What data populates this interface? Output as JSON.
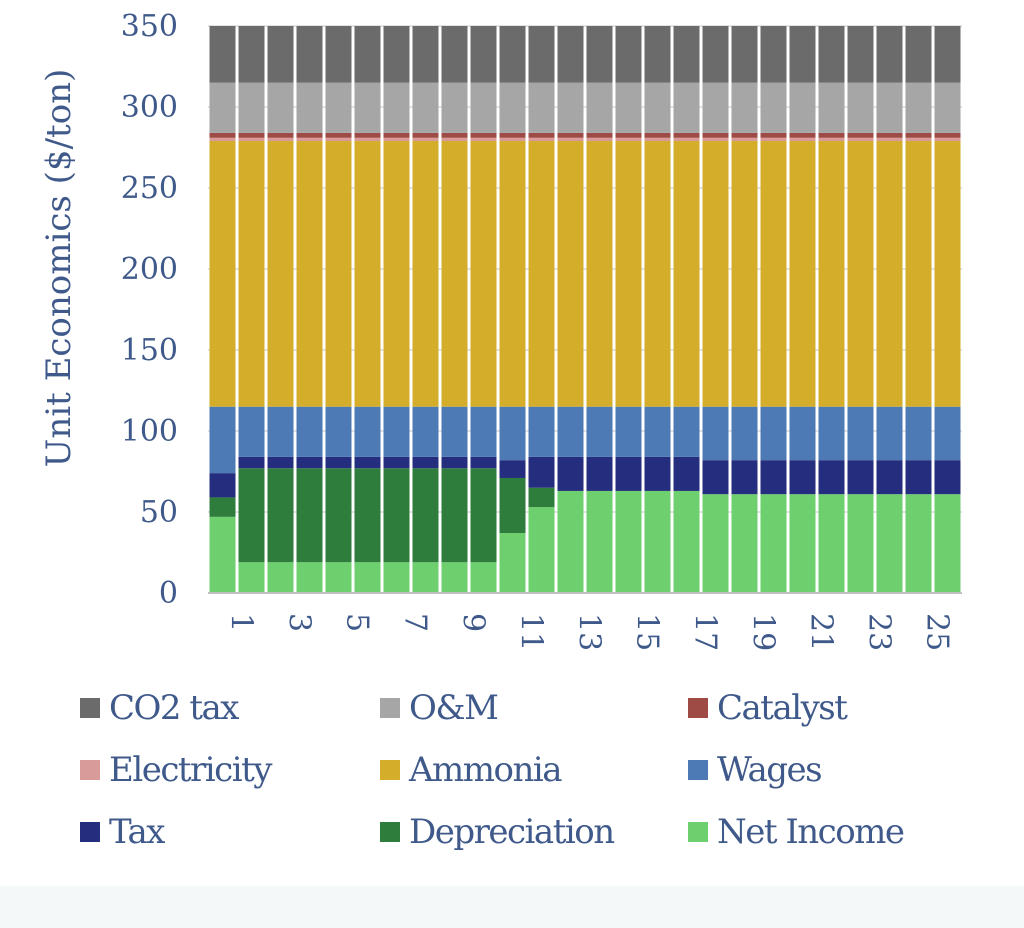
{
  "chart_data": {
    "type": "bar",
    "stacked": true,
    "title": "",
    "xlabel": "",
    "ylabel": "Unit Economics ($/ton)",
    "ylim": [
      0,
      350
    ],
    "yticks": [
      0,
      50,
      100,
      150,
      200,
      250,
      300,
      350
    ],
    "grid": true,
    "legend_position": "bottom",
    "categories": [
      "1",
      "2",
      "3",
      "4",
      "5",
      "6",
      "7",
      "8",
      "9",
      "10",
      "11",
      "12",
      "13",
      "14",
      "15",
      "16",
      "17",
      "18",
      "19",
      "20",
      "21",
      "22",
      "23",
      "24",
      "25",
      "26"
    ],
    "x_tick_labels": [
      "1",
      "3",
      "5",
      "7",
      "9",
      "11",
      "13",
      "15",
      "17",
      "19",
      "21",
      "23",
      "25"
    ],
    "series": [
      {
        "name": "Net Income",
        "color": "#6dcf6d",
        "values": [
          47,
          19,
          19,
          19,
          19,
          19,
          19,
          19,
          19,
          19,
          37,
          53,
          63,
          63,
          63,
          63,
          63,
          61,
          61,
          61,
          61,
          61,
          61,
          61,
          61,
          61
        ]
      },
      {
        "name": "Depreciation",
        "color": "#2e7d3c",
        "values": [
          12,
          58,
          58,
          58,
          58,
          58,
          58,
          58,
          58,
          58,
          34,
          12,
          0,
          0,
          0,
          0,
          0,
          0,
          0,
          0,
          0,
          0,
          0,
          0,
          0,
          0
        ]
      },
      {
        "name": "Tax",
        "color": "#252e7e",
        "values": [
          15,
          7,
          7,
          7,
          7,
          7,
          7,
          7,
          7,
          7,
          11,
          19,
          21,
          21,
          21,
          21,
          21,
          21,
          21,
          21,
          21,
          21,
          21,
          21,
          21,
          21
        ]
      },
      {
        "name": "Wages",
        "color": "#4d7ab5",
        "values": [
          41,
          31,
          31,
          31,
          31,
          31,
          31,
          31,
          31,
          31,
          33,
          31,
          31,
          31,
          31,
          31,
          31,
          33,
          33,
          33,
          33,
          33,
          33,
          33,
          33,
          33
        ]
      },
      {
        "name": "Ammonia",
        "color": "#d4ae2b",
        "values": [
          164,
          164,
          164,
          164,
          164,
          164,
          164,
          164,
          164,
          164,
          164,
          164,
          164,
          164,
          164,
          164,
          164,
          164,
          164,
          164,
          164,
          164,
          164,
          164,
          164,
          164
        ]
      },
      {
        "name": "Electricity",
        "color": "#d99a9a",
        "values": [
          2,
          2,
          2,
          2,
          2,
          2,
          2,
          2,
          2,
          2,
          2,
          2,
          2,
          2,
          2,
          2,
          2,
          2,
          2,
          2,
          2,
          2,
          2,
          2,
          2,
          2
        ]
      },
      {
        "name": "Catalyst",
        "color": "#9e4a45",
        "values": [
          3,
          3,
          3,
          3,
          3,
          3,
          3,
          3,
          3,
          3,
          3,
          3,
          3,
          3,
          3,
          3,
          3,
          3,
          3,
          3,
          3,
          3,
          3,
          3,
          3,
          3
        ]
      },
      {
        "name": "O&M",
        "color": "#a6a6a6",
        "values": [
          31,
          31,
          31,
          31,
          31,
          31,
          31,
          31,
          31,
          31,
          31,
          31,
          31,
          31,
          31,
          31,
          31,
          31,
          31,
          31,
          31,
          31,
          31,
          31,
          31,
          31
        ]
      },
      {
        "name": "CO2 tax",
        "color": "#6b6b6b",
        "values": [
          35,
          35,
          35,
          35,
          35,
          35,
          35,
          35,
          35,
          35,
          35,
          35,
          35,
          35,
          35,
          35,
          35,
          35,
          35,
          35,
          35,
          35,
          35,
          35,
          35,
          35
        ]
      }
    ]
  },
  "legend": {
    "items": [
      {
        "label": "CO2 tax",
        "color": "#6b6b6b"
      },
      {
        "label": "O&M",
        "color": "#a6a6a6"
      },
      {
        "label": "Catalyst",
        "color": "#9e4a45"
      },
      {
        "label": "Electricity",
        "color": "#d99a9a"
      },
      {
        "label": "Ammonia",
        "color": "#d4ae2b"
      },
      {
        "label": "Wages",
        "color": "#4d7ab5"
      },
      {
        "label": "Tax",
        "color": "#252e7e"
      },
      {
        "label": "Depreciation",
        "color": "#2e7d3c"
      },
      {
        "label": "Net Income",
        "color": "#6dcf6d"
      }
    ]
  }
}
